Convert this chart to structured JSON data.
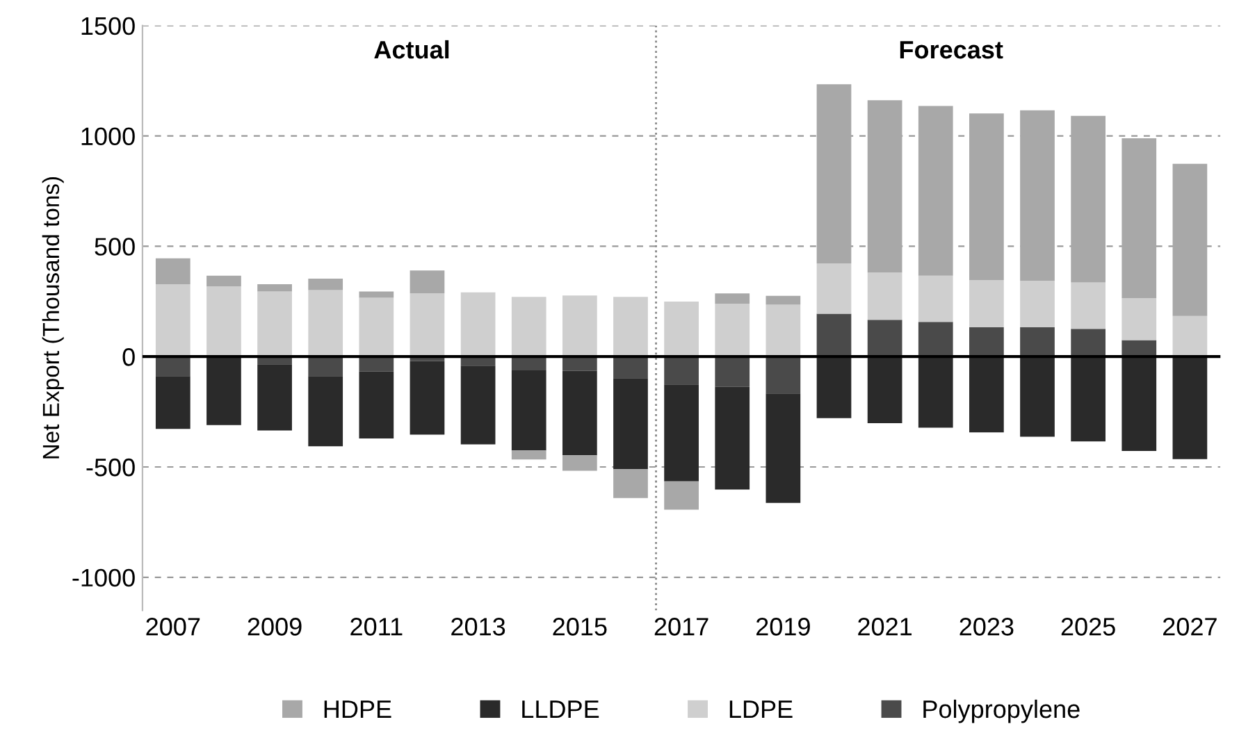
{
  "chart_data": {
    "type": "bar",
    "stacked": true,
    "ylabel": "Net Export (Thousand tons)",
    "x": [
      2007,
      2008,
      2009,
      2010,
      2011,
      2012,
      2013,
      2014,
      2015,
      2016,
      2017,
      2018,
      2019,
      2020,
      2021,
      2022,
      2023,
      2024,
      2025,
      2026,
      2027
    ],
    "xlim": [
      2006.4,
      2027.6
    ],
    "xticks": [
      2007,
      2009,
      2011,
      2013,
      2015,
      2017,
      2019,
      2021,
      2023,
      2025,
      2027
    ],
    "ylim": [
      -1150,
      1500
    ],
    "yticks": [
      -1000,
      -500,
      0,
      500,
      1000,
      1500
    ],
    "grid": "y",
    "legend": "bottom",
    "annotations": [
      "Actual",
      "Forecast"
    ],
    "ref_lines": [
      {
        "axis": "x",
        "value": 2016.5,
        "color": "#888888",
        "line_style": "dotted"
      }
    ],
    "series": [
      {
        "name": "Polypropylene",
        "color": "#4a4a4a",
        "values": [
          -88,
          0,
          -35,
          -88,
          -68,
          -20,
          -41,
          -62,
          -64,
          -98,
          -126,
          -137,
          -167,
          194,
          167,
          157,
          133,
          133,
          126,
          75,
          0
        ]
      },
      {
        "name": "LDPE",
        "color": "#cfcfcf",
        "values": [
          328,
          318,
          295,
          301,
          267,
          287,
          291,
          271,
          277,
          271,
          249,
          239,
          235,
          228,
          214,
          210,
          214,
          210,
          210,
          190,
          184
        ]
      },
      {
        "name": "LLDPE",
        "color": "#2a2a2a",
        "values": [
          -240,
          -310,
          -300,
          -318,
          -303,
          -334,
          -357,
          -363,
          -383,
          -412,
          -439,
          -465,
          -496,
          -279,
          -302,
          -322,
          -343,
          -363,
          -384,
          -428,
          -465
        ]
      },
      {
        "name": "HDPE",
        "color": "#a8a8a8",
        "values": [
          117,
          49,
          33,
          52,
          28,
          103,
          0,
          -41,
          -70,
          -131,
          -129,
          47,
          40,
          812,
          781,
          769,
          755,
          773,
          755,
          724,
          690
        ]
      }
    ]
  }
}
